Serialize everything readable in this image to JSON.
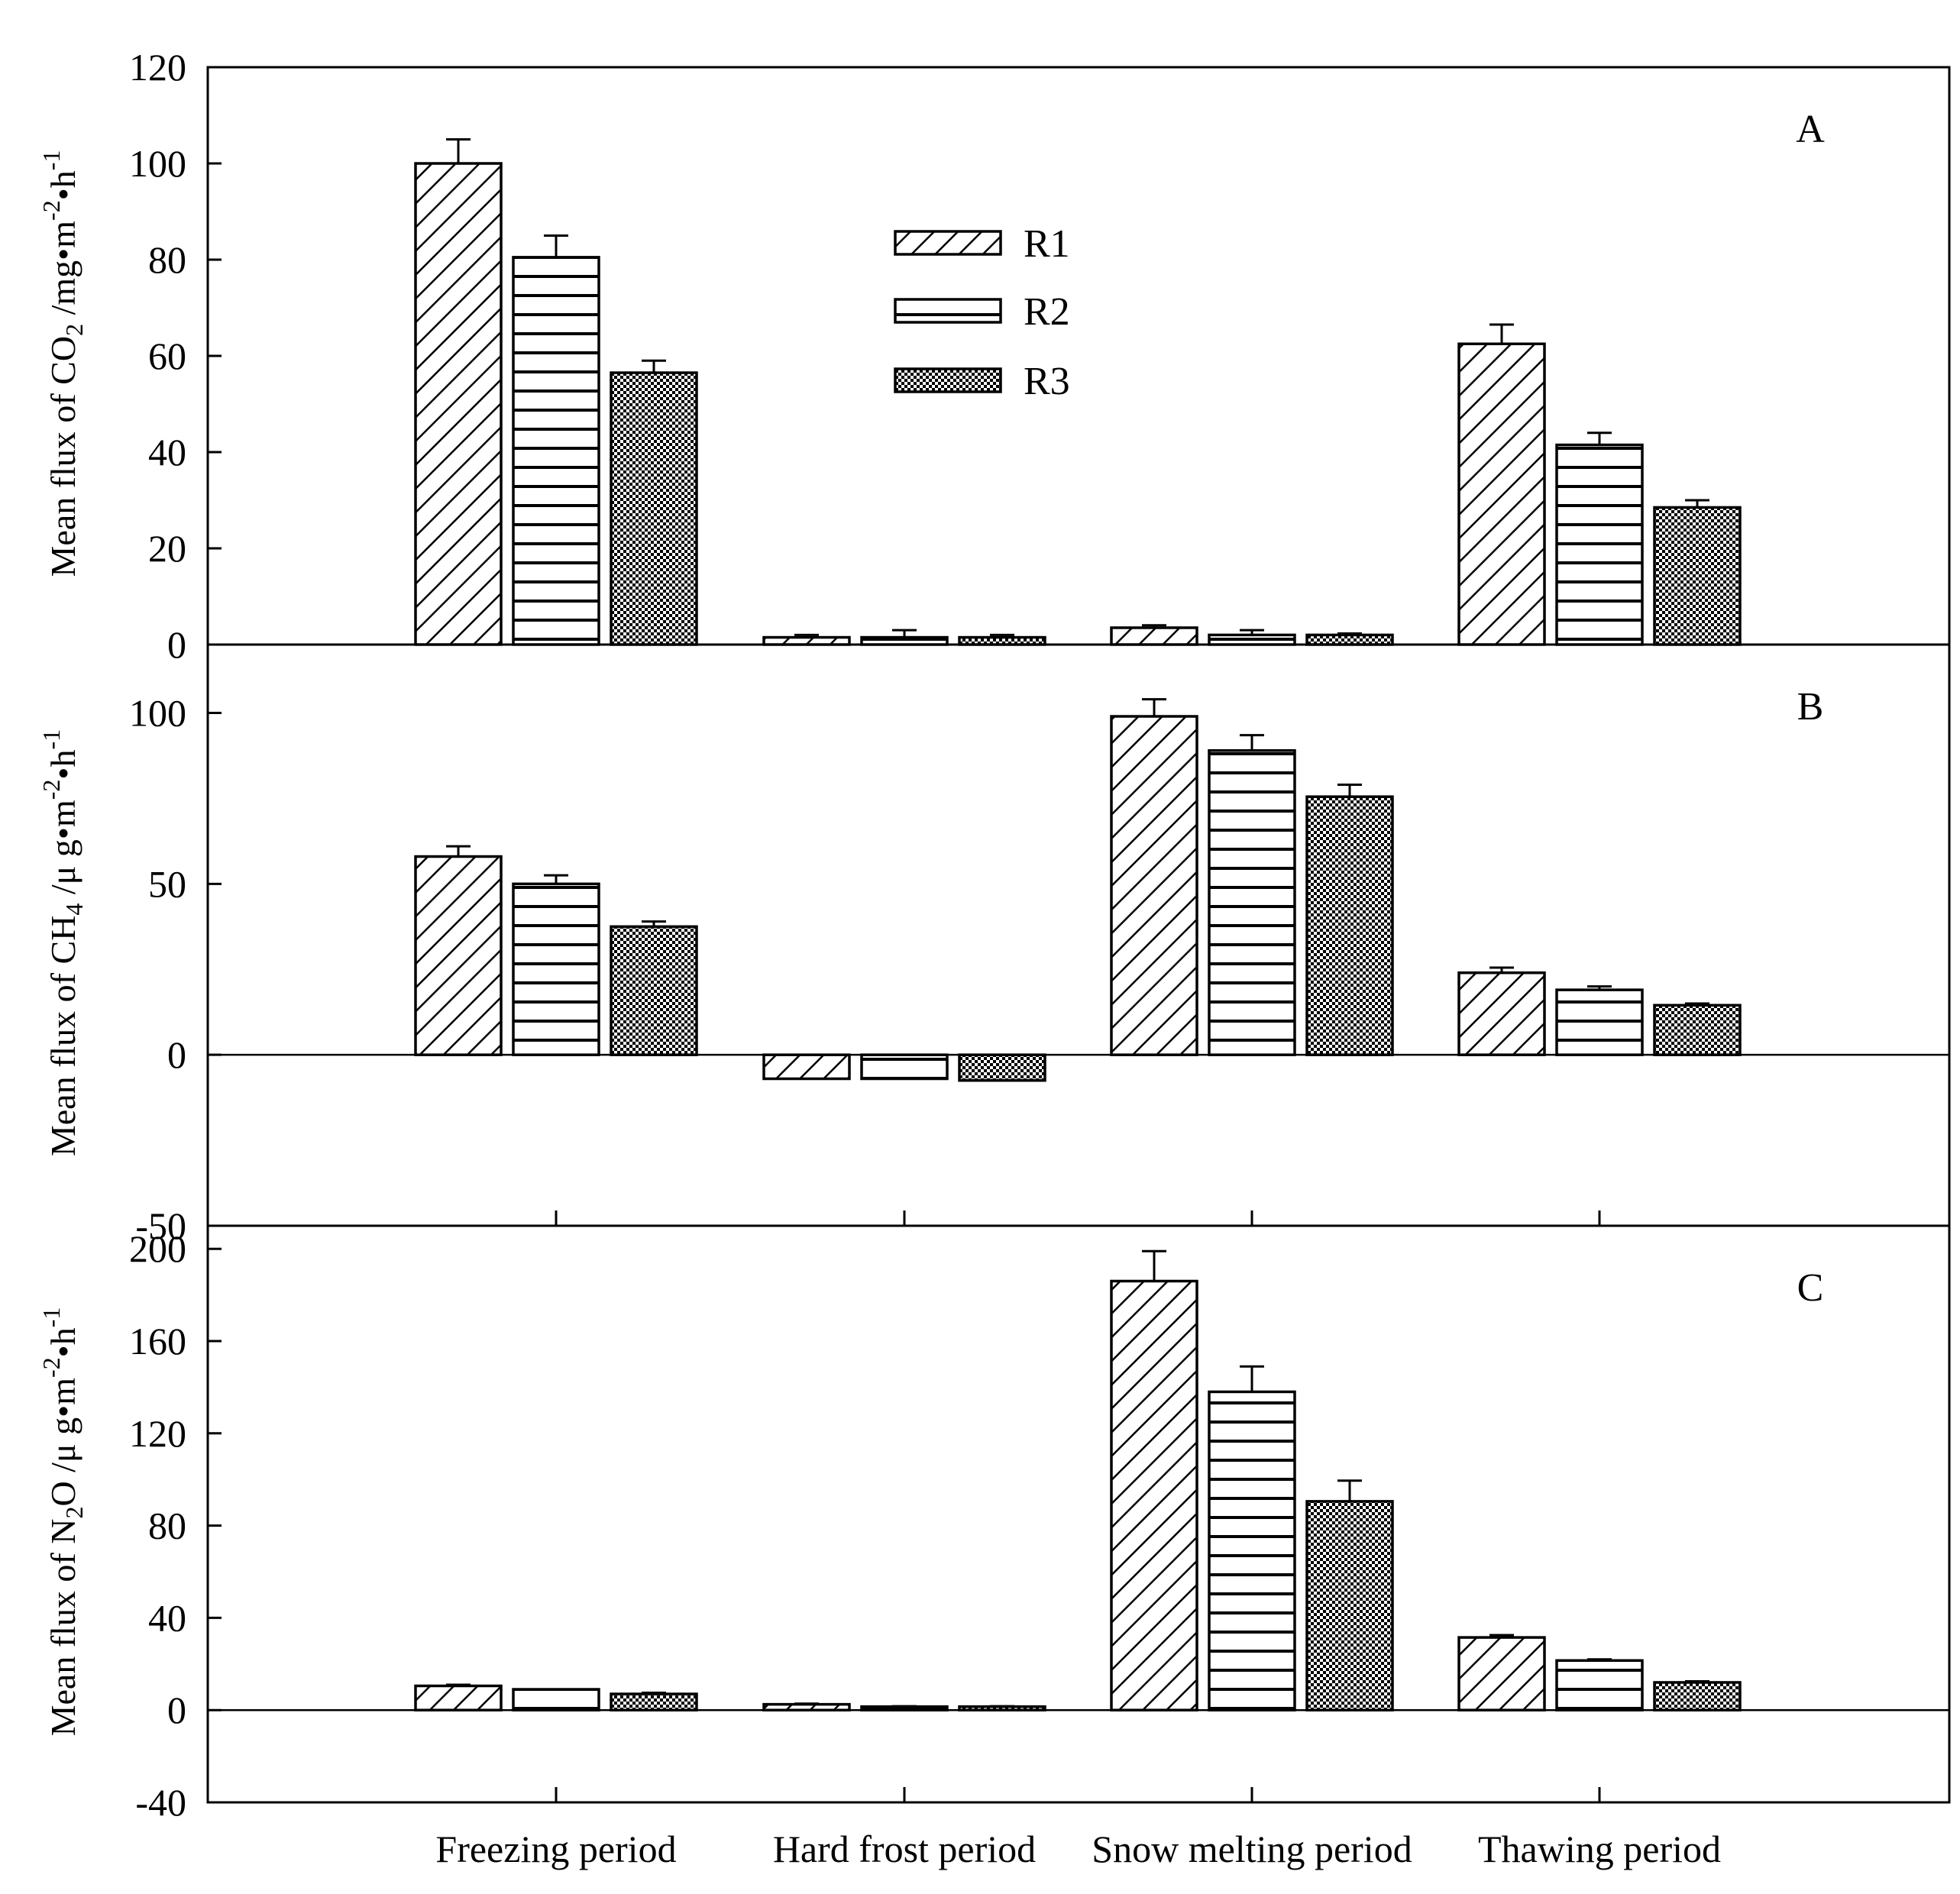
{
  "chart_data": {
    "type": "bar",
    "categories": [
      "Freezing period",
      "Hard frost period",
      "Snow melting period",
      "Thawing period"
    ],
    "legend": {
      "position": "top-center",
      "entries": [
        {
          "name": "R1",
          "pattern": "diagonal"
        },
        {
          "name": "R2",
          "pattern": "horizontal"
        },
        {
          "name": "R3",
          "pattern": "checker"
        }
      ]
    },
    "panels": [
      {
        "label": "A",
        "ylabel": {
          "prefix": "Mean flux of CO",
          "sub1": "2",
          "middle": " /mg•m",
          "sup1": "-2",
          "dot": "•h",
          "sup2": "-1"
        },
        "ylim": [
          0,
          120
        ],
        "yticks": [
          0,
          20,
          40,
          60,
          80,
          100,
          120
        ],
        "series": [
          {
            "name": "R1",
            "values": [
              100,
              1.5,
              3.5,
              62.5
            ],
            "errors": [
              5,
              0.5,
              0.5,
              4
            ]
          },
          {
            "name": "R2",
            "values": [
              80.5,
              1.5,
              2,
              41.5
            ],
            "errors": [
              4.5,
              1.5,
              1,
              2.5
            ]
          },
          {
            "name": "R3",
            "values": [
              56.5,
              1.5,
              2,
              28.5
            ],
            "errors": [
              2.5,
              0.5,
              0.3,
              1.5
            ]
          }
        ]
      },
      {
        "label": "B",
        "ylabel": {
          "prefix": "Mean flux of CH",
          "sub1": "4",
          "middle": " /μ g•m",
          "sup1": "-2",
          "dot": "•h",
          "sup2": "-1"
        },
        "ylim": [
          -50,
          120
        ],
        "yticks": [
          -50,
          0,
          50,
          100
        ],
        "series": [
          {
            "name": "R1",
            "values": [
              58,
              -7,
              99,
              24
            ],
            "errors": [
              3,
              0,
              5,
              1.5
            ]
          },
          {
            "name": "R2",
            "values": [
              50,
              -7,
              89,
              19
            ],
            "errors": [
              2.5,
              0,
              4.5,
              1
            ]
          },
          {
            "name": "R3",
            "values": [
              37.5,
              -7.5,
              75.5,
              14.5
            ],
            "errors": [
              1.5,
              0,
              3.5,
              0.5
            ]
          }
        ]
      },
      {
        "label": "C",
        "ylabel": {
          "prefix": "Mean flux of N",
          "sub1": "2",
          "middle": "O /μ g•m",
          "sup1": "-2",
          "dot": "•h",
          "sup2": "-1"
        },
        "ylim": [
          -40,
          210
        ],
        "yticks": [
          -40,
          0,
          40,
          80,
          120,
          160,
          200
        ],
        "series": [
          {
            "name": "R1",
            "values": [
              10.5,
              2.5,
              186,
              31.5
            ],
            "errors": [
              0.5,
              0.3,
              13,
              1
            ]
          },
          {
            "name": "R2",
            "values": [
              9,
              1.5,
              138,
              21.5
            ],
            "errors": [
              0,
              0.2,
              11,
              0.5
            ]
          },
          {
            "name": "R3",
            "values": [
              7,
              1.5,
              90.5,
              12
            ],
            "errors": [
              0.5,
              0.2,
              9,
              0.5
            ]
          }
        ]
      }
    ],
    "xlabel": "",
    "grid": false
  }
}
